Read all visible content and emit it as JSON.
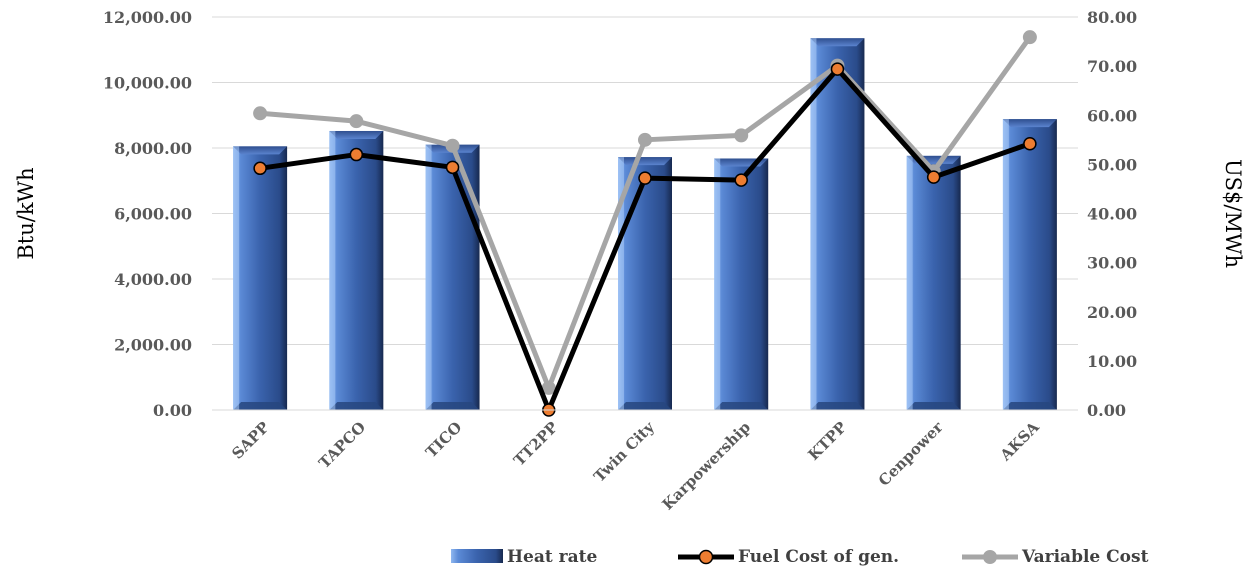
{
  "chart_data": {
    "type": "bar",
    "categories": [
      "SAPP",
      "TAPCO",
      "TICO",
      "TT2PP",
      "Twin City",
      "Karpowership",
      "KTPP",
      "Cenpower",
      "AKSA"
    ],
    "series": [
      {
        "name": "Heat rate",
        "type": "bar",
        "axis": "left",
        "color": "#3A63AD",
        "values": [
          8050,
          8520,
          8100,
          0,
          7720,
          7680,
          11350,
          7760,
          8880
        ]
      },
      {
        "name": "Fuel Cost of gen.",
        "type": "line",
        "axis": "right",
        "color": "#000000",
        "marker_color": "#ED7D31",
        "values": [
          49.2,
          52.0,
          49.4,
          0.0,
          47.2,
          46.8,
          69.4,
          47.4,
          54.2
        ]
      },
      {
        "name": "Variable Cost",
        "type": "line",
        "axis": "right",
        "color": "#A6A6A6",
        "marker_color": "#A6A6A6",
        "values": [
          60.4,
          58.8,
          53.8,
          4.5,
          55.0,
          55.9,
          70.1,
          48.6,
          75.9
        ]
      }
    ],
    "y_left": {
      "label": "Btu/kWh",
      "ylim": [
        0,
        12000
      ],
      "ticks": [
        "0.00",
        "2,000.00",
        "4,000.00",
        "6,000.00",
        "8,000.00",
        "10,000.00",
        "12,000.00"
      ]
    },
    "y_right": {
      "label": "US$/MWh",
      "ylim": [
        0,
        80
      ],
      "ticks": [
        "0.00",
        "10.00",
        "20.00",
        "30.00",
        "40.00",
        "50.00",
        "60.00",
        "70.00",
        "80.00"
      ]
    },
    "title": "",
    "grid": true,
    "legend_position": "bottom-right"
  }
}
